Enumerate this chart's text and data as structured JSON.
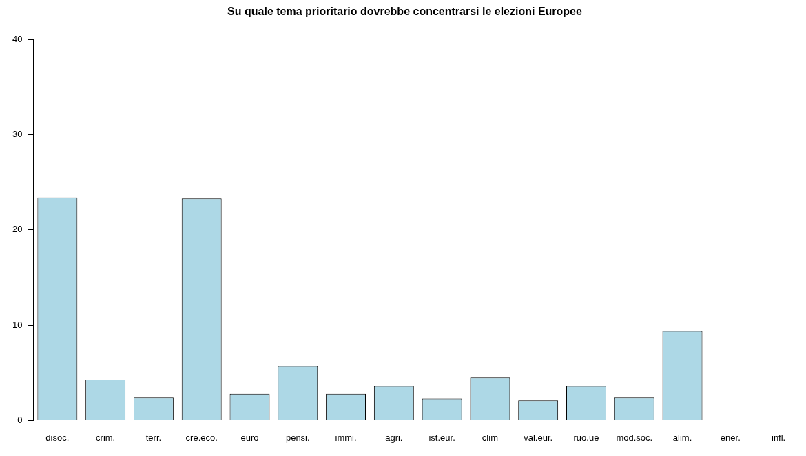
{
  "chart_data": {
    "type": "bar",
    "title": "Su quale tema prioritario dovrebbe concentrarsi le elezioni Europee",
    "categories": [
      "disoc.",
      "crim.",
      "terr.",
      "cre.eco.",
      "euro",
      "pensi.",
      "immi.",
      "agri.",
      "ist.eur.",
      "clim",
      "val.eur.",
      "ruo.ue",
      "mod.soc.",
      "alim.",
      "ener.",
      "infl."
    ],
    "values": [
      23.4,
      4.3,
      2.4,
      23.3,
      2.8,
      5.7,
      2.8,
      3.6,
      2.3,
      4.5,
      2.1,
      3.6,
      2.4,
      9.4,
      0,
      0
    ],
    "color": "#add8e6",
    "ylim": [
      0,
      40
    ],
    "yticks": [
      0,
      10,
      20,
      30,
      40
    ],
    "grid": false,
    "legend": false
  }
}
